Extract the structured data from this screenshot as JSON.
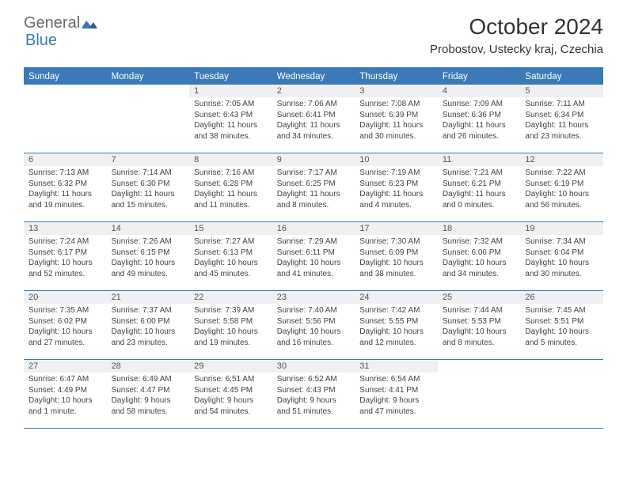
{
  "brand": {
    "name1": "General",
    "name2": "Blue"
  },
  "title": "October 2024",
  "location": "Probostov, Ustecky kraj, Czechia",
  "colors": {
    "header_bar": "#3a7ab8",
    "daynum_bg": "#eef0f2",
    "text": "#333333",
    "logo_gray": "#6b6b6b",
    "logo_blue": "#3a7ab8"
  },
  "typography": {
    "title_fontsize": 28,
    "location_fontsize": 15,
    "dow_fontsize": 11.5,
    "daynum_fontsize": 11,
    "details_fontsize": 10
  },
  "daysOfWeek": [
    "Sunday",
    "Monday",
    "Tuesday",
    "Wednesday",
    "Thursday",
    "Friday",
    "Saturday"
  ],
  "weeks": [
    [
      {
        "num": "",
        "sunrise": "",
        "sunset": "",
        "daylight": ""
      },
      {
        "num": "",
        "sunrise": "",
        "sunset": "",
        "daylight": ""
      },
      {
        "num": "1",
        "sunrise": "Sunrise: 7:05 AM",
        "sunset": "Sunset: 6:43 PM",
        "daylight": "Daylight: 11 hours and 38 minutes."
      },
      {
        "num": "2",
        "sunrise": "Sunrise: 7:06 AM",
        "sunset": "Sunset: 6:41 PM",
        "daylight": "Daylight: 11 hours and 34 minutes."
      },
      {
        "num": "3",
        "sunrise": "Sunrise: 7:08 AM",
        "sunset": "Sunset: 6:39 PM",
        "daylight": "Daylight: 11 hours and 30 minutes."
      },
      {
        "num": "4",
        "sunrise": "Sunrise: 7:09 AM",
        "sunset": "Sunset: 6:36 PM",
        "daylight": "Daylight: 11 hours and 26 minutes."
      },
      {
        "num": "5",
        "sunrise": "Sunrise: 7:11 AM",
        "sunset": "Sunset: 6:34 PM",
        "daylight": "Daylight: 11 hours and 23 minutes."
      }
    ],
    [
      {
        "num": "6",
        "sunrise": "Sunrise: 7:13 AM",
        "sunset": "Sunset: 6:32 PM",
        "daylight": "Daylight: 11 hours and 19 minutes."
      },
      {
        "num": "7",
        "sunrise": "Sunrise: 7:14 AM",
        "sunset": "Sunset: 6:30 PM",
        "daylight": "Daylight: 11 hours and 15 minutes."
      },
      {
        "num": "8",
        "sunrise": "Sunrise: 7:16 AM",
        "sunset": "Sunset: 6:28 PM",
        "daylight": "Daylight: 11 hours and 11 minutes."
      },
      {
        "num": "9",
        "sunrise": "Sunrise: 7:17 AM",
        "sunset": "Sunset: 6:25 PM",
        "daylight": "Daylight: 11 hours and 8 minutes."
      },
      {
        "num": "10",
        "sunrise": "Sunrise: 7:19 AM",
        "sunset": "Sunset: 6:23 PM",
        "daylight": "Daylight: 11 hours and 4 minutes."
      },
      {
        "num": "11",
        "sunrise": "Sunrise: 7:21 AM",
        "sunset": "Sunset: 6:21 PM",
        "daylight": "Daylight: 11 hours and 0 minutes."
      },
      {
        "num": "12",
        "sunrise": "Sunrise: 7:22 AM",
        "sunset": "Sunset: 6:19 PM",
        "daylight": "Daylight: 10 hours and 56 minutes."
      }
    ],
    [
      {
        "num": "13",
        "sunrise": "Sunrise: 7:24 AM",
        "sunset": "Sunset: 6:17 PM",
        "daylight": "Daylight: 10 hours and 52 minutes."
      },
      {
        "num": "14",
        "sunrise": "Sunrise: 7:26 AM",
        "sunset": "Sunset: 6:15 PM",
        "daylight": "Daylight: 10 hours and 49 minutes."
      },
      {
        "num": "15",
        "sunrise": "Sunrise: 7:27 AM",
        "sunset": "Sunset: 6:13 PM",
        "daylight": "Daylight: 10 hours and 45 minutes."
      },
      {
        "num": "16",
        "sunrise": "Sunrise: 7:29 AM",
        "sunset": "Sunset: 6:11 PM",
        "daylight": "Daylight: 10 hours and 41 minutes."
      },
      {
        "num": "17",
        "sunrise": "Sunrise: 7:30 AM",
        "sunset": "Sunset: 6:09 PM",
        "daylight": "Daylight: 10 hours and 38 minutes."
      },
      {
        "num": "18",
        "sunrise": "Sunrise: 7:32 AM",
        "sunset": "Sunset: 6:06 PM",
        "daylight": "Daylight: 10 hours and 34 minutes."
      },
      {
        "num": "19",
        "sunrise": "Sunrise: 7:34 AM",
        "sunset": "Sunset: 6:04 PM",
        "daylight": "Daylight: 10 hours and 30 minutes."
      }
    ],
    [
      {
        "num": "20",
        "sunrise": "Sunrise: 7:35 AM",
        "sunset": "Sunset: 6:02 PM",
        "daylight": "Daylight: 10 hours and 27 minutes."
      },
      {
        "num": "21",
        "sunrise": "Sunrise: 7:37 AM",
        "sunset": "Sunset: 6:00 PM",
        "daylight": "Daylight: 10 hours and 23 minutes."
      },
      {
        "num": "22",
        "sunrise": "Sunrise: 7:39 AM",
        "sunset": "Sunset: 5:58 PM",
        "daylight": "Daylight: 10 hours and 19 minutes."
      },
      {
        "num": "23",
        "sunrise": "Sunrise: 7:40 AM",
        "sunset": "Sunset: 5:56 PM",
        "daylight": "Daylight: 10 hours and 16 minutes."
      },
      {
        "num": "24",
        "sunrise": "Sunrise: 7:42 AM",
        "sunset": "Sunset: 5:55 PM",
        "daylight": "Daylight: 10 hours and 12 minutes."
      },
      {
        "num": "25",
        "sunrise": "Sunrise: 7:44 AM",
        "sunset": "Sunset: 5:53 PM",
        "daylight": "Daylight: 10 hours and 8 minutes."
      },
      {
        "num": "26",
        "sunrise": "Sunrise: 7:45 AM",
        "sunset": "Sunset: 5:51 PM",
        "daylight": "Daylight: 10 hours and 5 minutes."
      }
    ],
    [
      {
        "num": "27",
        "sunrise": "Sunrise: 6:47 AM",
        "sunset": "Sunset: 4:49 PM",
        "daylight": "Daylight: 10 hours and 1 minute."
      },
      {
        "num": "28",
        "sunrise": "Sunrise: 6:49 AM",
        "sunset": "Sunset: 4:47 PM",
        "daylight": "Daylight: 9 hours and 58 minutes."
      },
      {
        "num": "29",
        "sunrise": "Sunrise: 6:51 AM",
        "sunset": "Sunset: 4:45 PM",
        "daylight": "Daylight: 9 hours and 54 minutes."
      },
      {
        "num": "30",
        "sunrise": "Sunrise: 6:52 AM",
        "sunset": "Sunset: 4:43 PM",
        "daylight": "Daylight: 9 hours and 51 minutes."
      },
      {
        "num": "31",
        "sunrise": "Sunrise: 6:54 AM",
        "sunset": "Sunset: 4:41 PM",
        "daylight": "Daylight: 9 hours and 47 minutes."
      },
      {
        "num": "",
        "sunrise": "",
        "sunset": "",
        "daylight": ""
      },
      {
        "num": "",
        "sunrise": "",
        "sunset": "",
        "daylight": ""
      }
    ]
  ]
}
